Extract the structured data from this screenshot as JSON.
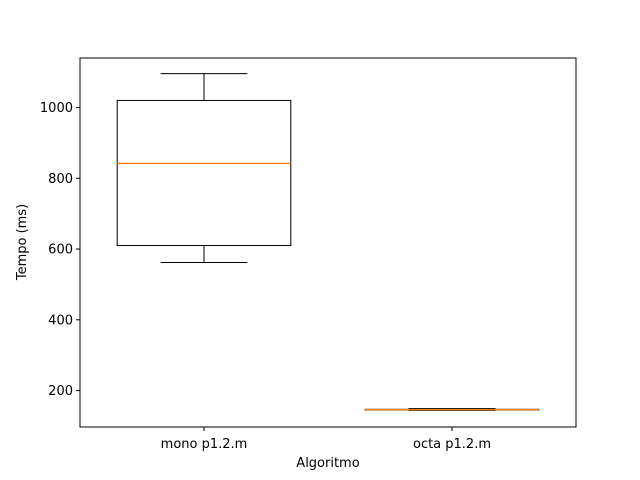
{
  "chart_data": {
    "type": "box",
    "title": "",
    "xlabel": "Algoritmo",
    "ylabel": "Tempo (ms)",
    "ylim": [
      97,
      1140
    ],
    "yticks": [
      200,
      400,
      600,
      800,
      1000
    ],
    "categories": [
      "mono p1.2.m",
      "octa p1.2.m"
    ],
    "series": [
      {
        "category": "mono p1.2.m",
        "whisker_low": 562,
        "q1": 610,
        "median": 842,
        "q3": 1020,
        "whisker_high": 1096
      },
      {
        "category": "octa p1.2.m",
        "whisker_low": 144,
        "q1": 145,
        "median": 146,
        "q3": 147,
        "whisker_high": 149
      }
    ],
    "box_color": "#000000",
    "median_color": "#ff7f0e",
    "grid": false,
    "legend": "none"
  }
}
